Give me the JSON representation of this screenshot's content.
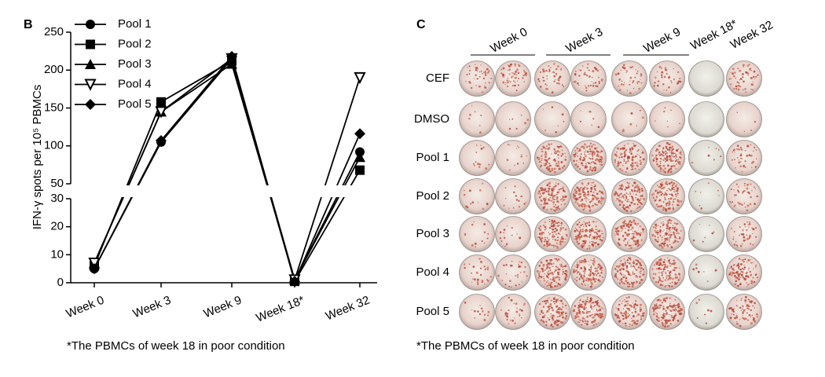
{
  "chart_data": {
    "type": "line",
    "panel": "B",
    "ylabel": "IFN-γ spots per 10⁵ PBMCs",
    "categories": [
      "Week 0",
      "Week 3",
      "Week 9",
      "Week 18*",
      "Week 32"
    ],
    "series": [
      {
        "name": "Pool 1",
        "color": "#000000",
        "marker": "circle",
        "values": [
          5,
          105,
          215,
          1,
          92
        ]
      },
      {
        "name": "Pool 2",
        "color": "#000000",
        "marker": "square",
        "values": [
          6,
          158,
          212,
          0.5,
          68
        ]
      },
      {
        "name": "Pool 3",
        "color": "#000000",
        "marker": "triangle",
        "values": [
          7,
          145,
          208,
          1,
          85
        ]
      },
      {
        "name": "Pool 4",
        "color": "#000000",
        "marker": "triangle-down",
        "values": [
          7,
          145,
          215,
          1,
          190
        ]
      },
      {
        "name": "Pool 5",
        "color": "#000000",
        "marker": "diamond",
        "values": [
          5,
          107,
          218,
          0.5,
          116
        ]
      }
    ],
    "ylim": [
      0,
      250
    ],
    "ybreak": [
      30,
      50
    ],
    "yticks": [
      0,
      10,
      20,
      30,
      50,
      100,
      150,
      200,
      250
    ],
    "legend": "upper left",
    "footnote": "*The PBMCs of week 18 in poor condition"
  },
  "panel_c": {
    "panel": "C",
    "column_groups": [
      "Week 0",
      "Week 3",
      "Week 9",
      "Week 18*",
      "Week 32"
    ],
    "rows": [
      "CEF",
      "DMSO",
      "Pool 1",
      "Pool 2",
      "Pool 3",
      "Pool 4",
      "Pool 5"
    ],
    "footnote": "*The PBMCs of week 18 in poor condition"
  }
}
